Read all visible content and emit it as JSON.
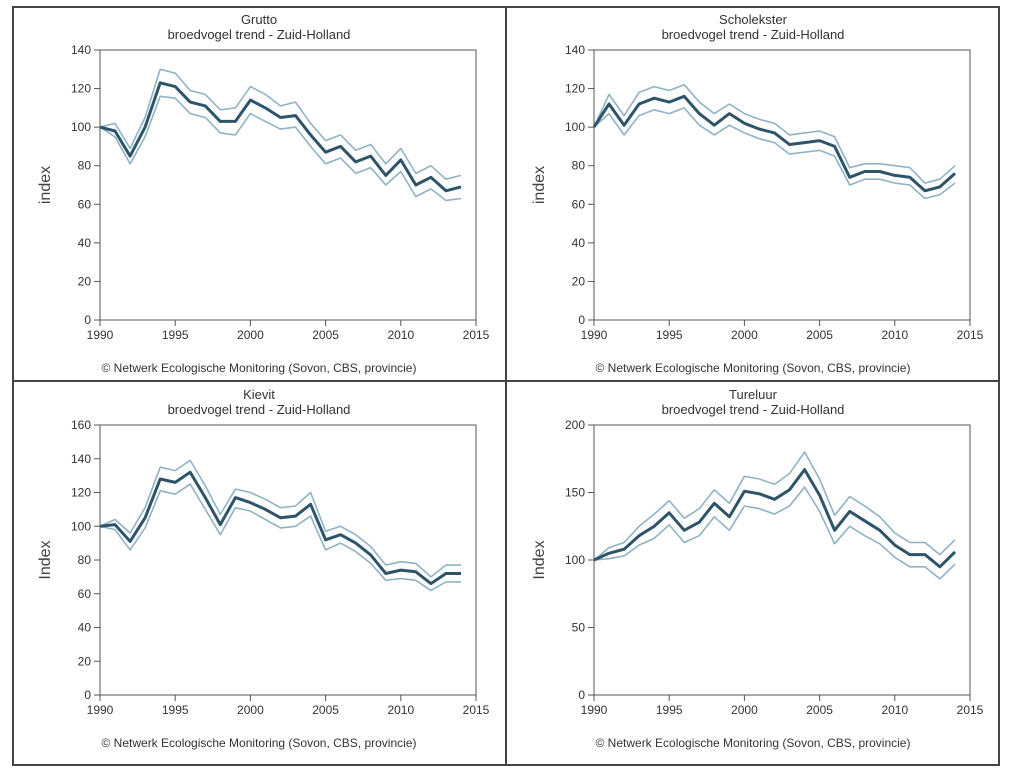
{
  "colors": {
    "main_line": "#2d5468",
    "band_line": "#8fb3c4",
    "axis": "#555555"
  },
  "footer_text": "© Netwerk Ecologische Monitoring (Sovon, CBS, provincie)",
  "chart_data": [
    {
      "type": "line",
      "title": "Grutto",
      "subtitle": "broedvogel trend - Zuid-Holland",
      "ylabel": "index",
      "xlabel": "",
      "xlim": [
        1990,
        2015
      ],
      "ylim": [
        0,
        140
      ],
      "xticks": [
        1990,
        1995,
        2000,
        2005,
        2010,
        2015
      ],
      "yticks": [
        0,
        20,
        40,
        60,
        80,
        100,
        120,
        140
      ],
      "grid": false,
      "x": [
        1990,
        1991,
        1992,
        1993,
        1994,
        1995,
        1996,
        1997,
        1998,
        1999,
        2000,
        2001,
        2002,
        2003,
        2004,
        2005,
        2006,
        2007,
        2008,
        2009,
        2010,
        2011,
        2012,
        2013,
        2014
      ],
      "series": [
        {
          "values": [
            100,
            98,
            85,
            100,
            123,
            121,
            113,
            111,
            103,
            103,
            114,
            110,
            105,
            106,
            96,
            87,
            90,
            82,
            85,
            75,
            83,
            70,
            74,
            67,
            69
          ]
        },
        {
          "values": [
            100,
            102,
            89,
            105,
            130,
            128,
            119,
            117,
            109,
            110,
            121,
            117,
            111,
            113,
            102,
            93,
            96,
            88,
            91,
            81,
            89,
            76,
            80,
            73,
            75
          ]
        },
        {
          "values": [
            100,
            95,
            81,
            95,
            116,
            115,
            107,
            105,
            97,
            96,
            107,
            103,
            99,
            100,
            90,
            81,
            84,
            76,
            79,
            70,
            77,
            64,
            68,
            62,
            63
          ]
        }
      ]
    },
    {
      "type": "line",
      "title": "Scholekster",
      "subtitle": "broedvogel trend - Zuid-Holland",
      "ylabel": "index",
      "xlabel": "",
      "xlim": [
        1990,
        2015
      ],
      "ylim": [
        0,
        140
      ],
      "xticks": [
        1990,
        1995,
        2000,
        2005,
        2010,
        2015
      ],
      "yticks": [
        0,
        20,
        40,
        60,
        80,
        100,
        120,
        140
      ],
      "grid": false,
      "x": [
        1990,
        1991,
        1992,
        1993,
        1994,
        1995,
        1996,
        1997,
        1998,
        1999,
        2000,
        2001,
        2002,
        2003,
        2004,
        2005,
        2006,
        2007,
        2008,
        2009,
        2010,
        2011,
        2012,
        2013,
        2014
      ],
      "series": [
        {
          "values": [
            100,
            112,
            101,
            112,
            115,
            113,
            116,
            107,
            101,
            107,
            102,
            99,
            97,
            91,
            92,
            93,
            90,
            74,
            77,
            77,
            75,
            74,
            67,
            69,
            76
          ]
        },
        {
          "values": [
            100,
            117,
            106,
            118,
            121,
            119,
            122,
            113,
            107,
            112,
            107,
            104,
            102,
            96,
            97,
            98,
            95,
            79,
            81,
            81,
            80,
            79,
            71,
            73,
            80
          ]
        },
        {
          "values": [
            100,
            107,
            96,
            106,
            109,
            107,
            110,
            101,
            96,
            101,
            97,
            94,
            92,
            86,
            87,
            88,
            85,
            70,
            73,
            73,
            71,
            70,
            63,
            65,
            71
          ]
        }
      ]
    },
    {
      "type": "line",
      "title": "Kievit",
      "subtitle": "broedvogel trend - Zuid-Holland",
      "ylabel": "Index",
      "xlabel": "",
      "xlim": [
        1990,
        2015
      ],
      "ylim": [
        0,
        160
      ],
      "xticks": [
        1990,
        1995,
        2000,
        2005,
        2010,
        2015
      ],
      "yticks": [
        0,
        20,
        40,
        60,
        80,
        100,
        120,
        140,
        160
      ],
      "grid": false,
      "x": [
        1990,
        1991,
        1992,
        1993,
        1994,
        1995,
        1996,
        1997,
        1998,
        1999,
        2000,
        2001,
        2002,
        2003,
        2004,
        2005,
        2006,
        2007,
        2008,
        2009,
        2010,
        2011,
        2012,
        2013,
        2014
      ],
      "series": [
        {
          "values": [
            100,
            101,
            91,
            105,
            128,
            126,
            132,
            117,
            101,
            117,
            114,
            110,
            105,
            106,
            113,
            92,
            95,
            90,
            83,
            72,
            74,
            73,
            66,
            72,
            72
          ]
        },
        {
          "values": [
            100,
            104,
            96,
            111,
            135,
            133,
            139,
            124,
            107,
            122,
            120,
            116,
            111,
            112,
            120,
            97,
            100,
            95,
            88,
            77,
            79,
            78,
            70,
            77,
            77
          ]
        },
        {
          "values": [
            100,
            98,
            86,
            99,
            121,
            119,
            125,
            110,
            95,
            111,
            109,
            104,
            99,
            100,
            106,
            86,
            90,
            85,
            78,
            68,
            69,
            68,
            62,
            67,
            67
          ]
        }
      ]
    },
    {
      "type": "line",
      "title": "Tureluur",
      "subtitle": "broedvogel trend - Zuid-Holland",
      "ylabel": "Index",
      "xlabel": "",
      "xlim": [
        1990,
        2015
      ],
      "ylim": [
        0,
        200
      ],
      "xticks": [
        1990,
        1995,
        2000,
        2005,
        2010,
        2015
      ],
      "yticks": [
        0,
        50,
        100,
        150,
        200
      ],
      "grid": false,
      "x": [
        1990,
        1991,
        1992,
        1993,
        1994,
        1995,
        1996,
        1997,
        1998,
        1999,
        2000,
        2001,
        2002,
        2003,
        2004,
        2005,
        2006,
        2007,
        2008,
        2009,
        2010,
        2011,
        2012,
        2013,
        2014
      ],
      "series": [
        {
          "values": [
            100,
            105,
            108,
            118,
            125,
            135,
            122,
            128,
            142,
            132,
            151,
            149,
            145,
            152,
            167,
            148,
            122,
            136,
            129,
            122,
            111,
            104,
            104,
            95,
            106
          ]
        },
        {
          "values": [
            100,
            109,
            113,
            125,
            134,
            144,
            131,
            138,
            152,
            142,
            162,
            160,
            156,
            164,
            180,
            160,
            133,
            147,
            140,
            132,
            120,
            113,
            113,
            104,
            115
          ]
        },
        {
          "values": [
            100,
            101,
            103,
            111,
            116,
            126,
            113,
            118,
            132,
            122,
            140,
            138,
            134,
            140,
            154,
            136,
            112,
            125,
            118,
            112,
            102,
            95,
            95,
            86,
            97
          ]
        }
      ]
    }
  ]
}
